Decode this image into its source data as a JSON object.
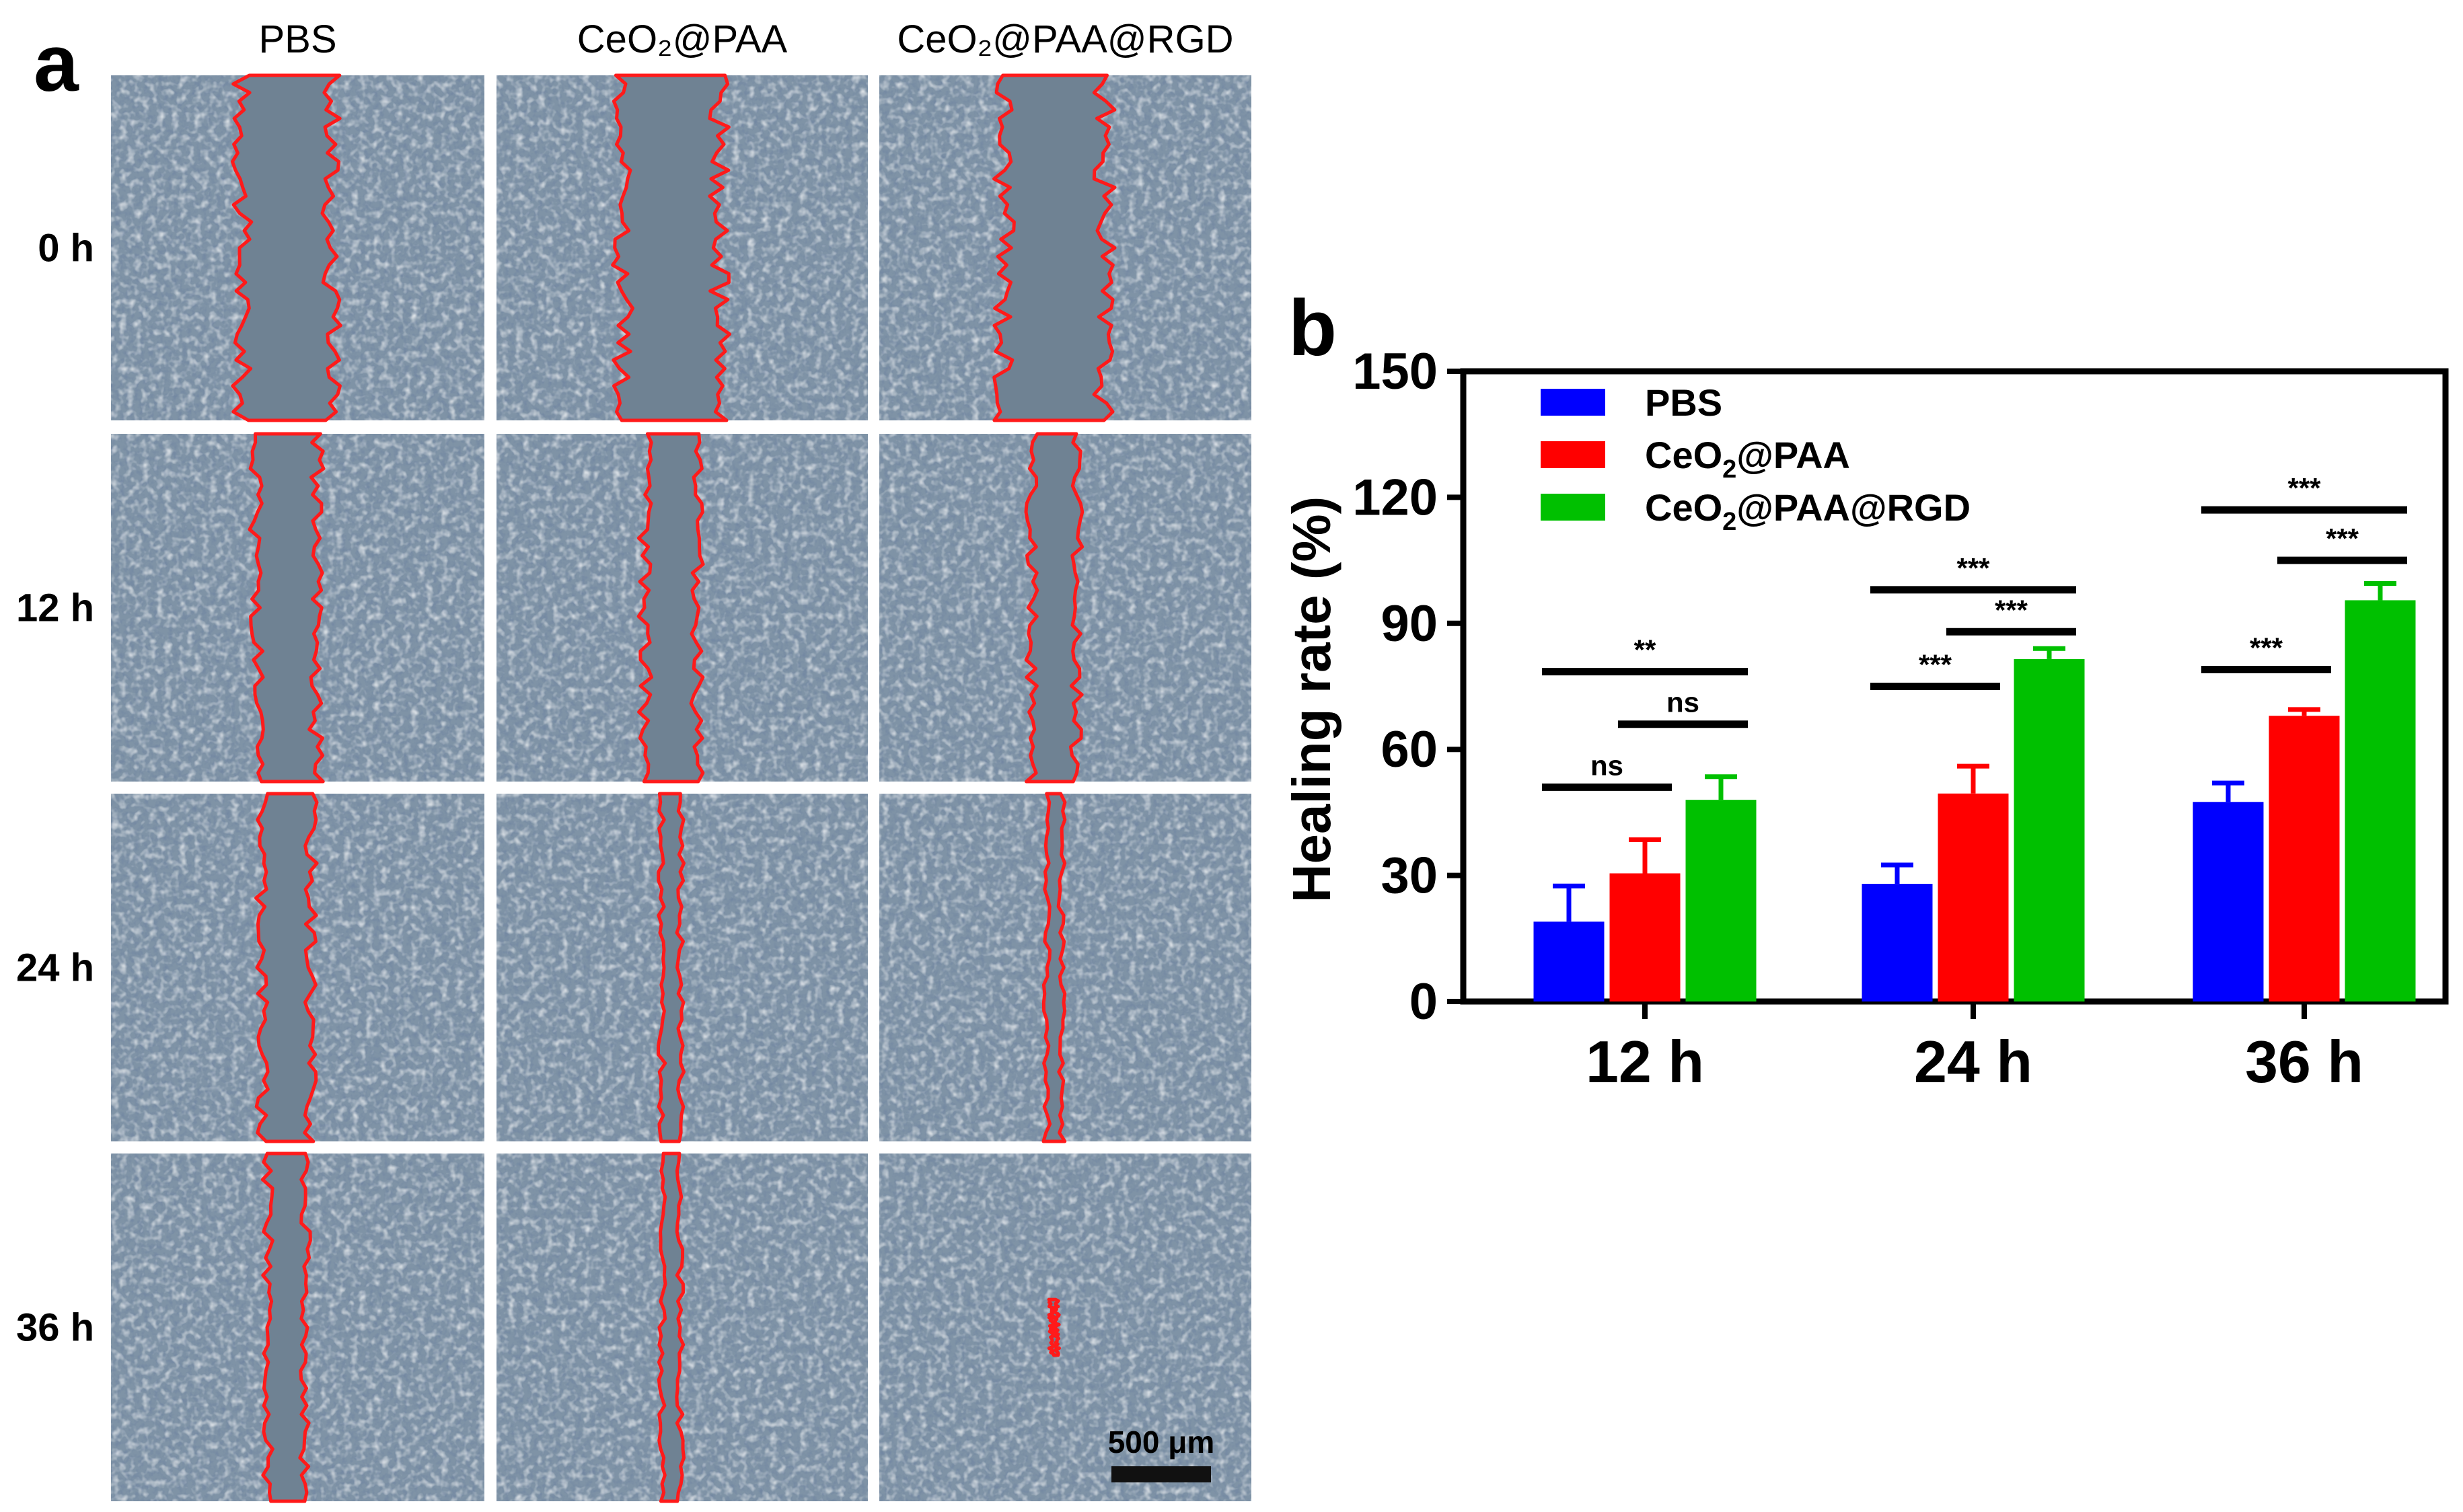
{
  "panel_a": {
    "letter": "a",
    "columns": [
      "PBS",
      "CeO₂@PAA",
      "CeO₂@PAA@RGD"
    ],
    "rows": [
      "0 h",
      "12 h",
      "24 h",
      "36 h"
    ],
    "wound_fraction": [
      [
        0.24,
        0.26,
        0.27
      ],
      [
        0.16,
        0.14,
        0.12
      ],
      [
        0.13,
        0.05,
        0.04
      ],
      [
        0.1,
        0.05,
        0.015
      ]
    ],
    "scale_bar_label": "500 μm",
    "colors": {
      "tissue": "#7f93a6",
      "gap": "#6f8293",
      "edge": "#ff1a1a"
    }
  },
  "chart_data": {
    "panel_letter": "b",
    "type": "bar",
    "categories": [
      "12 h",
      "24 h",
      "36 h"
    ],
    "series": [
      {
        "name": "PBS",
        "name_main": "PBS",
        "name_sub": "",
        "name_tail": "",
        "color": "#0000ff",
        "values": [
          19,
          28,
          47.5
        ],
        "errors": [
          8.5,
          4.5,
          4.5
        ]
      },
      {
        "name": "CeO2@PAA",
        "name_main": "CeO",
        "name_sub": "2",
        "name_tail": "@PAA",
        "color": "#ff0000",
        "values": [
          30.5,
          49.5,
          68
        ],
        "errors": [
          8,
          6.5,
          1.5
        ]
      },
      {
        "name": "CeO2@PAA@RGD",
        "name_main": "CeO",
        "name_sub": "2",
        "name_tail": "@PAA@RGD",
        "color": "#00c000",
        "values": [
          48,
          81.5,
          95.5
        ],
        "errors": [
          5.5,
          2.5,
          4
        ]
      }
    ],
    "ylabel": "Healing rate (%)",
    "ylim": [
      0,
      150
    ],
    "yticks": [
      0,
      30,
      60,
      90,
      120,
      150
    ],
    "legend_position": "top-left",
    "significance": [
      {
        "group": 0,
        "from": 0,
        "to": 1,
        "label": "ns",
        "y": 51
      },
      {
        "group": 0,
        "from": 1,
        "to": 2,
        "label": "ns",
        "y": 66
      },
      {
        "group": 0,
        "from": 0,
        "to": 2,
        "label": "**",
        "y": 78.5
      },
      {
        "group": 1,
        "from": 0,
        "to": 1,
        "label": "***",
        "y": 75
      },
      {
        "group": 1,
        "from": 1,
        "to": 2,
        "label": "***",
        "y": 88
      },
      {
        "group": 1,
        "from": 0,
        "to": 2,
        "label": "***",
        "y": 98
      },
      {
        "group": 2,
        "from": 0,
        "to": 1,
        "label": "***",
        "y": 79
      },
      {
        "group": 2,
        "from": 1,
        "to": 2,
        "label": "***",
        "y": 105
      },
      {
        "group": 2,
        "from": 0,
        "to": 2,
        "label": "***",
        "y": 117
      }
    ]
  }
}
